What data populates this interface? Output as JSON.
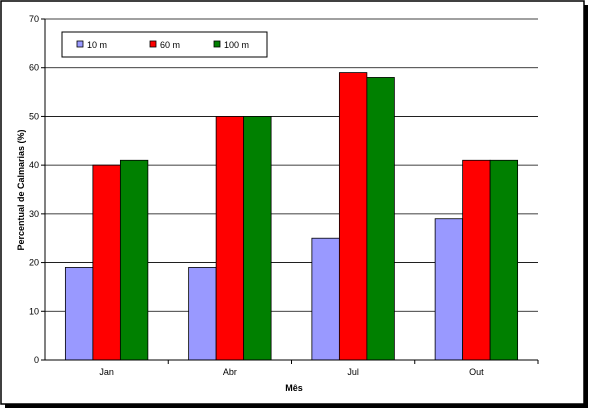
{
  "chart_data": {
    "type": "bar",
    "title": "",
    "xlabel": "Mês",
    "ylabel": "Percentual de Calmarias (%)",
    "categories": [
      "Jan",
      "Abr",
      "Jul",
      "Out"
    ],
    "ylim": [
      0,
      70
    ],
    "yticks": [
      0,
      10,
      20,
      30,
      40,
      50,
      60,
      70
    ],
    "grid": true,
    "legend_position": "top-left",
    "series": [
      {
        "name": "10 m",
        "color": "#9999ff",
        "values": [
          19,
          19,
          25,
          29
        ]
      },
      {
        "name": "60 m",
        "color": "#ff0000",
        "values": [
          40,
          50,
          59,
          41
        ]
      },
      {
        "name": "100 m",
        "color": "#008000",
        "values": [
          41,
          50,
          58,
          41
        ]
      }
    ]
  }
}
